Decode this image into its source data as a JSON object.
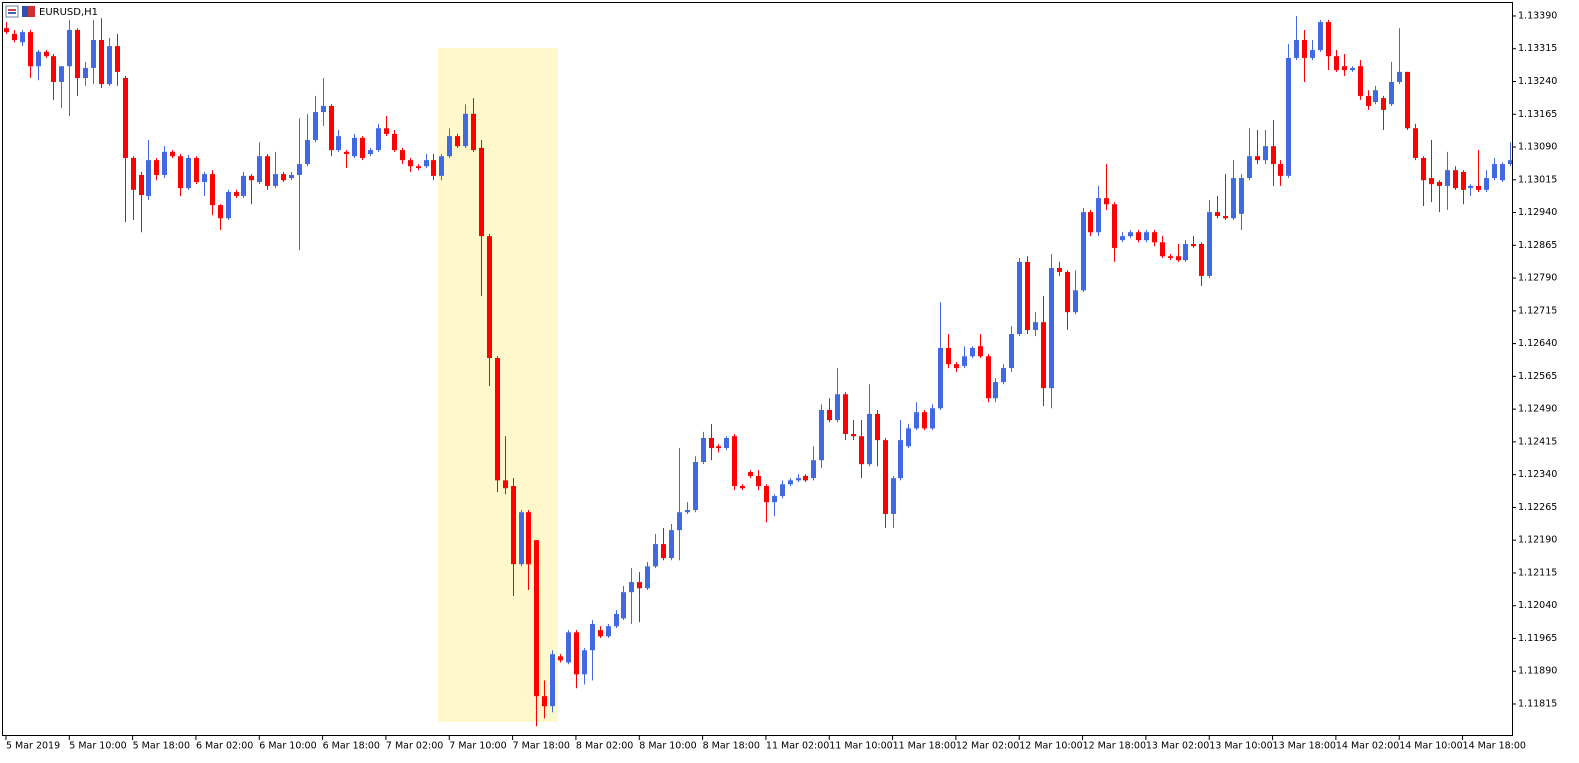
{
  "chart_data": {
    "type": "candlestick",
    "title": "EURUSD,H1",
    "bull_color": "#4169e1",
    "bear_color": "#ff0000",
    "xlim": [
      -0.5,
      190.5
    ],
    "xticks": [
      {
        "value": 0,
        "label": "5 Mar 2019"
      },
      {
        "value": 8,
        "label": "5 Mar 10:00"
      },
      {
        "value": 16,
        "label": "5 Mar 18:00"
      },
      {
        "value": 24,
        "label": "6 Mar 02:00"
      },
      {
        "value": 32,
        "label": "6 Mar 10:00"
      },
      {
        "value": 40,
        "label": "6 Mar 18:00"
      },
      {
        "value": 48,
        "label": "7 Mar 02:00"
      },
      {
        "value": 56,
        "label": "7 Mar 10:00"
      },
      {
        "value": 64,
        "label": "7 Mar 18:00"
      },
      {
        "value": 72,
        "label": "8 Mar 02:00"
      },
      {
        "value": 80,
        "label": "8 Mar 10:00"
      },
      {
        "value": 88,
        "label": "8 Mar 18:00"
      },
      {
        "value": 96,
        "label": "11 Mar 02:00"
      },
      {
        "value": 104,
        "label": "11 Mar 10:00"
      },
      {
        "value": 112,
        "label": "11 Mar 18:00"
      },
      {
        "value": 120,
        "label": "12 Mar 02:00"
      },
      {
        "value": 128,
        "label": "12 Mar 10:00"
      },
      {
        "value": 136,
        "label": "12 Mar 18:00"
      },
      {
        "value": 144,
        "label": "13 Mar 02:00"
      },
      {
        "value": 152,
        "label": "13 Mar 10:00"
      },
      {
        "value": 160,
        "label": "13 Mar 18:00"
      },
      {
        "value": 168,
        "label": "14 Mar 02:00"
      },
      {
        "value": 176,
        "label": "14 Mar 10:00"
      },
      {
        "value": 184,
        "label": "14 Mar 18:00"
      }
    ],
    "ylim": [
      1.11744,
      1.13422
    ],
    "yticks": [
      {
        "value": 1.1339,
        "label": "1.13390"
      },
      {
        "value": 1.13315,
        "label": "1.13315"
      },
      {
        "value": 1.1324,
        "label": "1.13240"
      },
      {
        "value": 1.13165,
        "label": "1.13165"
      },
      {
        "value": 1.1309,
        "label": "1.13090"
      },
      {
        "value": 1.13015,
        "label": "1.13015"
      },
      {
        "value": 1.1294,
        "label": "1.12940"
      },
      {
        "value": 1.12865,
        "label": "1.12865"
      },
      {
        "value": 1.1279,
        "label": "1.12790"
      },
      {
        "value": 1.12715,
        "label": "1.12715"
      },
      {
        "value": 1.1264,
        "label": "1.12640"
      },
      {
        "value": 1.12565,
        "label": "1.12565"
      },
      {
        "value": 1.1249,
        "label": "1.12490"
      },
      {
        "value": 1.12415,
        "label": "1.12415"
      },
      {
        "value": 1.1234,
        "label": "1.12340"
      },
      {
        "value": 1.12265,
        "label": "1.12265"
      },
      {
        "value": 1.1219,
        "label": "1.12190"
      },
      {
        "value": 1.12115,
        "label": "1.12115"
      },
      {
        "value": 1.1204,
        "label": "1.12040"
      },
      {
        "value": 1.11965,
        "label": "1.11965"
      },
      {
        "value": 1.1189,
        "label": "1.11890"
      },
      {
        "value": 1.11815,
        "label": "1.11815"
      }
    ],
    "open": [
      1.13362,
      1.13349,
      1.1333,
      1.13353,
      1.13275,
      1.13308,
      1.13298,
      1.13239,
      1.13275,
      1.13358,
      1.13248,
      1.13271,
      1.13335,
      1.13234,
      1.13321,
      1.13248,
      1.13065,
      1.13026,
      1.12978,
      1.1306,
      1.13026,
      1.13079,
      1.13069,
      1.12996,
      1.13065,
      1.1301,
      1.13028,
      1.12957,
      1.12927,
      1.12987,
      1.12978,
      1.13024,
      1.1301,
      1.13069,
      1.13001,
      1.13028,
      1.13019,
      1.13026,
      1.13051,
      1.13106,
      1.1317,
      1.13184,
      1.13083,
      1.13079,
      1.13069,
      1.13111,
      1.13074,
      1.13083,
      1.13133,
      1.1312,
      1.13083,
      1.1306,
      1.13046,
      1.13046,
      1.1306,
      1.13024,
      1.13069,
      1.13115,
      1.13092,
      1.13166,
      1.13088,
      1.12886,
      1.12607,
      1.12327,
      1.12314,
      1.12135,
      1.12254,
      1.1219,
      1.11833,
      1.1181,
      1.11924,
      1.1191,
      1.11979,
      1.11883,
      1.11938,
      1.11984,
      1.1197,
      1.11993,
      1.12011,
      1.12071,
      1.12094,
      1.1208,
      1.1213,
      1.12181,
      1.12149,
      1.12213,
      1.12254,
      1.12259,
      1.12369,
      1.12424,
      1.12405,
      1.12401,
      1.12428,
      1.12314,
      1.12346,
      1.12337,
      1.12314,
      1.12277,
      1.12291,
      1.12318,
      1.12327,
      1.12337,
      1.12332,
      1.12373,
      1.12488,
      1.12465,
      1.12524,
      1.12433,
      1.12428,
      1.12364,
      1.12479,
      1.12419,
      1.1225,
      1.12332,
      1.12405,
      1.12446,
      1.12483,
      1.12446,
      1.12492,
      1.1263,
      1.12593,
      1.12589,
      1.12611,
      1.12634,
      1.12611,
      1.12515,
      1.12552,
      1.12584,
      1.12662,
      1.12827,
      1.12671,
      1.12689,
      1.12538,
      1.12813,
      1.12804,
      1.12712,
      1.12762,
      1.12941,
      1.12895,
      1.12973,
      1.12959,
      1.12877,
      1.12886,
      1.12895,
      1.12877,
      1.12895,
      1.12872,
      1.1284,
      1.1284,
      1.12831,
      1.12868,
      1.12868,
      1.12795,
      1.12941,
      1.12932,
      1.12927,
      1.12937,
      1.13019,
      1.13069,
      1.1306,
      1.13092,
      1.13051,
      1.13024,
      1.13294,
      1.13335,
      1.13294,
      1.13312,
      1.13376,
      1.13298,
      1.13275,
      1.13266,
      1.13275,
      1.13207,
      1.13193,
      1.13202,
      1.13188,
      1.13239,
      1.13262,
      1.13133,
      1.13065,
      1.13019,
      1.1301,
      1.13001,
      1.13037,
      1.13033,
      1.12996,
      1.13001,
      1.12992,
      1.13019,
      1.13014,
      1.13051
    ],
    "high": [
      1.13376,
      1.13358,
      1.13358,
      1.13358,
      1.13312,
      1.13312,
      1.13303,
      1.13275,
      1.13381,
      1.13362,
      1.13285,
      1.13381,
      1.13385,
      1.1334,
      1.13349,
      1.13253,
      1.13069,
      1.13033,
      1.13106,
      1.13065,
      1.13092,
      1.13083,
      1.13074,
      1.13072,
      1.13069,
      1.13033,
      1.13037,
      1.12959,
      1.12992,
      1.12992,
      1.13033,
      1.13028,
      1.13101,
      1.13074,
      1.13079,
      1.13033,
      1.13033,
      1.13156,
      1.13166,
      1.13207,
      1.13248,
      1.13188,
      1.13129,
      1.13083,
      1.1312,
      1.13115,
      1.13088,
      1.13143,
      1.13161,
      1.13129,
      1.13088,
      1.13065,
      1.13051,
      1.13074,
      1.13074,
      1.13074,
      1.13133,
      1.1312,
      1.13188,
      1.13202,
      1.13106,
      1.12891,
      1.12611,
      1.12428,
      1.12332,
      1.12259,
      1.12259,
      1.1219,
      1.11869,
      1.11938,
      1.11929,
      1.11984,
      1.11984,
      1.11943,
      1.12007,
      1.11993,
      1.11998,
      1.1203,
      1.12085,
      1.12126,
      1.12117,
      1.1214,
      1.12204,
      1.12218,
      1.12227,
      1.12401,
      1.12277,
      1.12382,
      1.12438,
      1.12456,
      1.1241,
      1.12428,
      1.12433,
      1.12318,
      1.1235,
      1.1235,
      1.12318,
      1.12295,
      1.12327,
      1.12332,
      1.12341,
      1.12341,
      1.12405,
      1.12501,
      1.12515,
      1.12584,
      1.12529,
      1.12465,
      1.12465,
      1.12547,
      1.12488,
      1.12424,
      1.12337,
      1.12465,
      1.12456,
      1.12506,
      1.12488,
      1.12501,
      1.12735,
      1.12662,
      1.12598,
      1.12634,
      1.12634,
      1.12662,
      1.12616,
      1.12561,
      1.12593,
      1.1268,
      1.12836,
      1.1284,
      1.12712,
      1.12749,
      1.12845,
      1.12827,
      1.12808,
      1.12808,
      1.1295,
      1.12946,
      1.13001,
      1.13051,
      1.12964,
      1.12895,
      1.129,
      1.129,
      1.129,
      1.129,
      1.12886,
      1.12845,
      1.12868,
      1.12877,
      1.12886,
      1.12872,
      1.12969,
      1.12978,
      1.13028,
      1.1306,
      1.13028,
      1.13133,
      1.13129,
      1.13129,
      1.13152,
      1.1306,
      1.13326,
      1.1339,
      1.13358,
      1.13335,
      1.13381,
      1.13381,
      1.13312,
      1.13303,
      1.13275,
      1.13289,
      1.1322,
      1.1323,
      1.13207,
      1.13285,
      1.13362,
      1.13262,
      1.13143,
      1.13069,
      1.13106,
      1.13014,
      1.13079,
      1.13046,
      1.13037,
      1.13005,
      1.13083,
      1.13037,
      1.13065,
      1.13055,
      1.13101
    ],
    "low": [
      1.13349,
      1.1333,
      1.13321,
      1.13248,
      1.13243,
      1.13294,
      1.13198,
      1.13179,
      1.13161,
      1.13207,
      1.1323,
      1.13234,
      1.13225,
      1.1323,
      1.1323,
      1.12918,
      1.12923,
      1.12895,
      1.12969,
      1.13014,
      1.13019,
      1.13065,
      1.12978,
      1.12992,
      1.13005,
      1.12978,
      1.12934,
      1.129,
      1.12923,
      1.12973,
      1.12973,
      1.12959,
      1.13005,
      1.12992,
      1.12996,
      1.1301,
      1.13014,
      1.12854,
      1.13046,
      1.13101,
      1.13138,
      1.13069,
      1.13079,
      1.13042,
      1.13065,
      1.1306,
      1.13069,
      1.13079,
      1.13115,
      1.13079,
      1.13051,
      1.13033,
      1.13037,
      1.13042,
      1.13014,
      1.13014,
      1.13065,
      1.13088,
      1.13088,
      1.13079,
      1.12749,
      1.12543,
      1.123,
      1.12295,
      1.12062,
      1.1213,
      1.12076,
      1.11764,
      1.11782,
      1.11796,
      1.1191,
      1.11906,
      1.11851,
      1.1186,
      1.11869,
      1.11966,
      1.11966,
      1.11989,
      1.12007,
      1.11998,
      1.12002,
      1.12076,
      1.12126,
      1.12144,
      1.12144,
      1.12144,
      1.1225,
      1.12254,
      1.12364,
      1.12373,
      1.12391,
      1.12396,
      1.12305,
      1.12305,
      1.12332,
      1.12305,
      1.12231,
      1.12245,
      1.12286,
      1.12314,
      1.12323,
      1.12323,
      1.12327,
      1.12355,
      1.1246,
      1.1246,
      1.12419,
      1.12419,
      1.12332,
      1.12359,
      1.12359,
      1.12218,
      1.12218,
      1.12327,
      1.12401,
      1.12442,
      1.12442,
      1.12442,
      1.12488,
      1.12584,
      1.12575,
      1.12584,
      1.12607,
      1.12607,
      1.12506,
      1.12506,
      1.12547,
      1.12575,
      1.12657,
      1.12662,
      1.12657,
      1.12497,
      1.12492,
      1.12795,
      1.12671,
      1.12707,
      1.12758,
      1.12886,
      1.12886,
      1.12946,
      1.12827,
      1.12872,
      1.12882,
      1.12872,
      1.12872,
      1.12863,
      1.12836,
      1.12831,
      1.12827,
      1.12827,
      1.12859,
      1.12772,
      1.1279,
      1.12927,
      1.12923,
      1.12923,
      1.129,
      1.13014,
      1.13051,
      1.13051,
      1.13001,
      1.13001,
      1.13019,
      1.13289,
      1.13239,
      1.13289,
      1.13308,
      1.13266,
      1.13262,
      1.13253,
      1.13262,
      1.13198,
      1.13175,
      1.13188,
      1.13129,
      1.13184,
      1.13234,
      1.13129,
      1.1306,
      1.12955,
      1.12964,
      1.12941,
      1.12946,
      1.12992,
      1.12959,
      1.12978,
      1.12987,
      1.12987,
      1.13014,
      1.1301,
      1.13046
    ],
    "close": [
      1.13353,
      1.13335,
      1.13353,
      1.13275,
      1.13308,
      1.13298,
      1.13239,
      1.13275,
      1.13358,
      1.13248,
      1.13271,
      1.13335,
      1.13234,
      1.13321,
      1.13262,
      1.13065,
      1.12992,
      1.1298,
      1.1306,
      1.13026,
      1.13079,
      1.13069,
      1.12996,
      1.13065,
      1.1301,
      1.13028,
      1.12957,
      1.12927,
      1.12987,
      1.12978,
      1.13024,
      1.13014,
      1.13069,
      1.13001,
      1.13028,
      1.13014,
      1.13026,
      1.13051,
      1.13106,
      1.1317,
      1.13184,
      1.13083,
      1.13115,
      1.13074,
      1.13111,
      1.13065,
      1.13083,
      1.13133,
      1.1312,
      1.13083,
      1.1306,
      1.13046,
      1.13042,
      1.1306,
      1.13024,
      1.13069,
      1.13115,
      1.13092,
      1.13166,
      1.13083,
      1.12886,
      1.12607,
      1.12327,
      1.12309,
      1.12135,
      1.12254,
      1.12135,
      1.11833,
      1.1181,
      1.11929,
      1.11915,
      1.11979,
      1.11883,
      1.11938,
      1.11998,
      1.1197,
      1.11993,
      1.12021,
      1.12071,
      1.12094,
      1.1208,
      1.1213,
      1.12181,
      1.12149,
      1.12213,
      1.12254,
      1.12259,
      1.12369,
      1.12424,
      1.12401,
      1.12401,
      1.12424,
      1.12314,
      1.12309,
      1.12337,
      1.12314,
      1.12277,
      1.12291,
      1.12318,
      1.12327,
      1.12332,
      1.12327,
      1.12373,
      1.12488,
      1.12465,
      1.12524,
      1.12433,
      1.12428,
      1.12364,
      1.12479,
      1.12419,
      1.1225,
      1.12332,
      1.12419,
      1.12446,
      1.12483,
      1.12446,
      1.12492,
      1.1263,
      1.12593,
      1.12584,
      1.12611,
      1.1263,
      1.12611,
      1.12515,
      1.12552,
      1.12584,
      1.12662,
      1.12827,
      1.12671,
      1.12689,
      1.12538,
      1.12813,
      1.12804,
      1.12712,
      1.12762,
      1.12941,
      1.12895,
      1.12973,
      1.12959,
      1.12859,
      1.12886,
      1.12895,
      1.12877,
      1.12895,
      1.12872,
      1.1284,
      1.12836,
      1.12831,
      1.12868,
      1.12863,
      1.12795,
      1.12941,
      1.12932,
      1.12927,
      1.13019,
      1.13019,
      1.13069,
      1.1306,
      1.13092,
      1.13051,
      1.13024,
      1.13294,
      1.13335,
      1.13294,
      1.13312,
      1.13376,
      1.13298,
      1.13266,
      1.13266,
      1.13271,
      1.13207,
      1.13184,
      1.1322,
      1.13175,
      1.13239,
      1.13262,
      1.13133,
      1.13065,
      1.13014,
      1.13005,
      1.13001,
      1.13037,
      1.12996,
      1.12992,
      1.13001,
      1.12992,
      1.13019,
      1.13051,
      1.13051,
      1.1306
    ]
  }
}
